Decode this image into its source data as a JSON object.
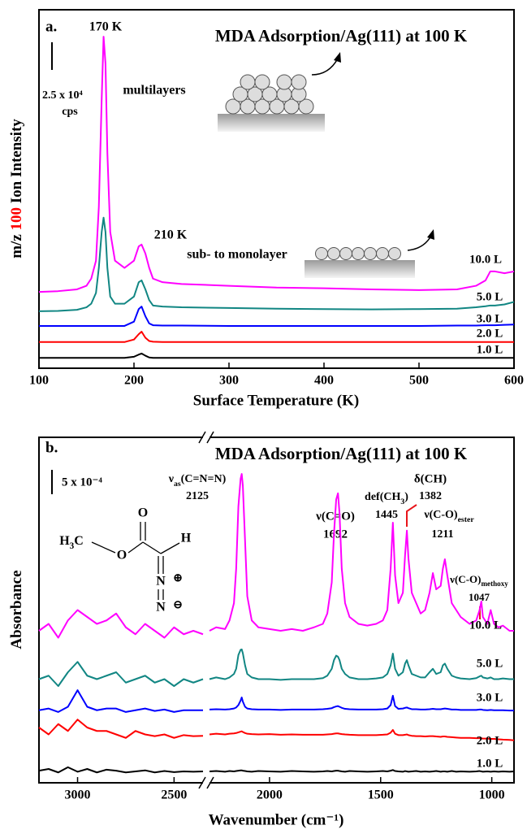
{
  "chart_data": [
    {
      "type": "line",
      "title": "MDA Adsorption/Ag(111) at 100 K",
      "x_label": "Surface Temperature (K)",
      "y_label": {
        "parts": [
          {
            "text": "m/z "
          },
          {
            "text": "100",
            "color": "#ff0000"
          },
          {
            "text": " Ion Intensity"
          }
        ]
      },
      "annotations": [
        {
          "text": "a."
        },
        {
          "text": "170 K"
        },
        {
          "text": "2.5 x 10⁴"
        },
        {
          "text": "cps"
        },
        {
          "text": "multilayers"
        },
        {
          "text": "210 K"
        },
        {
          "text": "sub- to monolayer"
        }
      ],
      "xlim": [
        100,
        600
      ],
      "xticks": [
        100,
        200,
        300,
        400,
        500,
        600
      ],
      "ylim": [
        0,
        100
      ],
      "x": [
        100,
        120,
        140,
        150,
        155,
        160,
        163,
        166,
        168,
        170,
        172,
        175,
        180,
        190,
        200,
        205,
        208,
        212,
        216,
        220,
        230,
        250,
        300,
        350,
        400,
        450,
        500,
        540,
        560,
        570,
        575,
        580,
        590,
        600
      ],
      "series": [
        {
          "name": "10.0 L",
          "color": "#ff00ff",
          "values": [
            21.3,
            21.5,
            22,
            23,
            25,
            30,
            45,
            75,
            92.5,
            85,
            60,
            38,
            30,
            28,
            30,
            34,
            34.5,
            32,
            28,
            25,
            24,
            23.5,
            23,
            22.5,
            22.3,
            22,
            21.8,
            22,
            23,
            24.5,
            27,
            27,
            26.5,
            27
          ]
        },
        {
          "name": "5.0 L",
          "color": "#118683",
          "values": [
            15.9,
            16,
            16.3,
            17,
            18,
            21,
            28,
            38,
            42,
            38,
            28,
            20,
            18,
            18,
            20,
            24,
            24.5,
            22,
            19,
            17.5,
            17.2,
            17,
            16.8,
            16.6,
            16.5,
            16.4,
            16.5,
            16.6,
            17,
            17.3,
            17.5,
            17.5,
            17.8,
            18.5
          ]
        },
        {
          "name": "3.0 L",
          "color": "#0000ff",
          "values": [
            11.8,
            11.8,
            11.8,
            11.8,
            11.8,
            11.8,
            11.8,
            11.8,
            11.8,
            11.8,
            11.8,
            11.8,
            11.8,
            11.8,
            13,
            16.5,
            17.2,
            14.5,
            12.5,
            12,
            11.9,
            11.9,
            11.8,
            11.8,
            11.8,
            11.8,
            11.8,
            11.9,
            11.9,
            12,
            12,
            12,
            12.1,
            12.2
          ]
        },
        {
          "name": "2.0 L",
          "color": "#ff0000",
          "values": [
            7.3,
            7.3,
            7.3,
            7.3,
            7.3,
            7.3,
            7.3,
            7.3,
            7.3,
            7.3,
            7.3,
            7.3,
            7.3,
            7.3,
            8,
            9.5,
            10.2,
            8.5,
            7.6,
            7.4,
            7.3,
            7.3,
            7.3,
            7.3,
            7.3,
            7.3,
            7.3,
            7.3,
            7.3,
            7.3,
            7.3,
            7.3,
            7.3,
            7.3
          ]
        },
        {
          "name": "1.0 L",
          "color": "#000000",
          "values": [
            2.9,
            2.9,
            2.9,
            2.9,
            2.9,
            2.9,
            2.9,
            2.9,
            2.9,
            2.9,
            2.9,
            2.9,
            2.9,
            2.9,
            3.2,
            3.8,
            4.1,
            3.5,
            3.0,
            2.9,
            2.9,
            2.9,
            2.9,
            2.9,
            2.9,
            2.9,
            2.9,
            2.9,
            2.9,
            2.9,
            2.9,
            2.9,
            2.9,
            2.9
          ]
        }
      ]
    },
    {
      "type": "line",
      "title": "MDA Adsorption/Ag(111) at 100 K",
      "x_label": "Wavenumber (cm⁻¹)",
      "y_label": {
        "parts": [
          {
            "text": "Absorbance"
          }
        ]
      },
      "annotations": [
        {
          "text": "b."
        },
        {
          "text": "5 x 10⁻⁴"
        },
        {
          "parts": [
            {
              "text": "ν"
            },
            {
              "text": "as",
              "sub": true
            },
            {
              "text": "(C=N=N)"
            }
          ],
          "color": "#e8141a"
        },
        {
          "text": "2125",
          "color": "#e8141a"
        },
        {
          "text": "ν(C=O)",
          "color": "#e8141a"
        },
        {
          "text": "1692",
          "color": "#e8141a"
        },
        {
          "parts": [
            {
              "text": "def(CH"
            },
            {
              "text": "3",
              "sub": true
            },
            {
              "text": ")"
            }
          ],
          "color": "#e8141a"
        },
        {
          "text": "1445",
          "color": "#e8141a"
        },
        {
          "text": "δ(CH)",
          "color": "#e8141a"
        },
        {
          "text": "1382",
          "color": "#e8141a"
        },
        {
          "parts": [
            {
              "text": "ν(C-O)"
            },
            {
              "text": "ester",
              "sub": true
            }
          ],
          "color": "#e8141a"
        },
        {
          "text": "1211",
          "color": "#e8141a"
        },
        {
          "parts": [
            {
              "text": "ν(C-O)"
            },
            {
              "text": "methoxy",
              "sub": true
            }
          ],
          "color": "#e8141a"
        },
        {
          "text": "1047",
          "color": "#e8141a"
        },
        {
          "parts": [
            {
              "text": "H"
            },
            {
              "text": "3",
              "sub": true
            },
            {
              "text": "C"
            }
          ]
        },
        {
          "text": "O"
        },
        {
          "text": "O"
        },
        {
          "text": "H"
        },
        {
          "text": "N"
        },
        {
          "text": "N"
        },
        {
          "text": "⊕"
        },
        {
          "text": "⊖"
        }
      ],
      "xlim": [
        3200,
        900
      ],
      "xbreak": [
        2350,
        2270
      ],
      "xticks": [
        3000,
        2500,
        2000,
        1500,
        1000
      ],
      "ylim": [
        0,
        100
      ],
      "x": [
        3200,
        3150,
        3100,
        3050,
        3000,
        2950,
        2900,
        2850,
        2800,
        2750,
        2700,
        2650,
        2600,
        2550,
        2500,
        2450,
        2400,
        2350,
        2270,
        2240,
        2200,
        2180,
        2160,
        2150,
        2140,
        2130,
        2125,
        2120,
        2110,
        2100,
        2080,
        2050,
        2000,
        1950,
        1900,
        1850,
        1800,
        1760,
        1740,
        1720,
        1710,
        1700,
        1692,
        1685,
        1675,
        1660,
        1640,
        1600,
        1560,
        1520,
        1490,
        1470,
        1455,
        1445,
        1435,
        1420,
        1400,
        1390,
        1382,
        1375,
        1360,
        1340,
        1320,
        1300,
        1280,
        1265,
        1250,
        1230,
        1220,
        1211,
        1200,
        1180,
        1160,
        1140,
        1100,
        1070,
        1055,
        1047,
        1040,
        1020,
        1005,
        990,
        970,
        950,
        920,
        900
      ],
      "series": [
        {
          "name": "10.0 L",
          "color": "#ff00ff",
          "values": [
            44,
            46,
            42,
            47,
            50,
            48,
            46,
            47,
            49,
            45,
            43,
            46,
            44,
            42,
            45,
            43,
            44,
            43,
            44,
            45,
            44.5,
            47,
            52,
            62,
            80,
            88,
            89.4,
            86,
            70,
            54,
            47,
            45,
            44.5,
            44,
            44.5,
            44,
            45,
            46,
            49,
            58,
            72,
            82,
            83.8,
            78,
            62,
            52,
            48,
            46,
            45.5,
            46,
            47,
            50,
            62,
            75.3,
            60,
            52,
            55,
            66,
            73,
            65,
            55,
            52,
            49,
            50,
            55,
            60.7,
            56,
            57,
            62,
            64.7,
            60,
            52,
            50,
            48,
            46,
            47,
            50,
            52.5,
            48,
            46,
            50,
            46,
            45,
            45.5,
            44,
            44
          ]
        },
        {
          "name": "5.0 L",
          "color": "#118683",
          "values": [
            30,
            31,
            28,
            32,
            35,
            31,
            30,
            31,
            32,
            29,
            30,
            31,
            29,
            30,
            28,
            30,
            29,
            30,
            30,
            30.5,
            30,
            30.5,
            31.5,
            33,
            37,
            38.5,
            38.6,
            37.5,
            34,
            31.5,
            30.5,
            30,
            30,
            29.8,
            30,
            30,
            30,
            30.3,
            31,
            33,
            35.5,
            36.8,
            36.5,
            35.5,
            33,
            31.5,
            30.5,
            30,
            30,
            30.2,
            30.5,
            31.5,
            34,
            37.4,
            33,
            31,
            32,
            34.5,
            35.5,
            34,
            31.5,
            31,
            30.5,
            30.5,
            32,
            33,
            31.5,
            32,
            34,
            34.5,
            33,
            31,
            30.5,
            30.2,
            30,
            30.3,
            30.8,
            31,
            30.5,
            30.2,
            30.5,
            30,
            30,
            30.2,
            30,
            30
          ]
        },
        {
          "name": "3.0 L",
          "color": "#0000ff",
          "values": [
            21,
            21.5,
            20.5,
            22,
            26.8,
            22,
            21,
            21.5,
            21.5,
            20.5,
            21,
            21.5,
            20.8,
            21.2,
            20.5,
            21,
            21,
            21,
            21.2,
            21.3,
            21.2,
            21.3,
            21.5,
            21.8,
            22.5,
            23.8,
            24.7,
            23.5,
            22,
            21.5,
            21.3,
            21.2,
            21.2,
            21.1,
            21.2,
            21.2,
            21.2,
            21.3,
            21.4,
            21.6,
            21.9,
            22.1,
            22.2,
            22,
            21.7,
            21.4,
            21.3,
            21.2,
            21.2,
            21.2,
            21.3,
            21.5,
            22.5,
            25.2,
            22.2,
            21.4,
            21.5,
            21.7,
            21.8,
            21.6,
            21.3,
            21.3,
            21.2,
            21.2,
            21.3,
            21.4,
            21.3,
            21.3,
            21.4,
            21.5,
            21.4,
            21.2,
            21.2,
            21.1,
            21.1,
            21.1,
            21.2,
            21.2,
            21.1,
            21,
            21.1,
            21,
            21,
            21,
            20.9,
            20.9
          ]
        },
        {
          "name": "2.0 L",
          "color": "#ff0000",
          "values": [
            16,
            14,
            17,
            15,
            18.3,
            16,
            15,
            15,
            14,
            13,
            15,
            14,
            13.5,
            14,
            13,
            13.8,
            13.5,
            13.6,
            14,
            14.2,
            14,
            14.2,
            14.3,
            14.4,
            14.6,
            14.8,
            14.9,
            14.7,
            14.4,
            14.2,
            14.1,
            14,
            14.1,
            13.9,
            14,
            13.9,
            13.9,
            13.9,
            14,
            14.1,
            14.2,
            14.3,
            14.3,
            14.2,
            14.1,
            14,
            13.9,
            13.8,
            13.8,
            13.8,
            13.9,
            14,
            14.5,
            15.3,
            14.2,
            13.8,
            13.8,
            13.9,
            14,
            13.8,
            13.6,
            13.5,
            13.5,
            13.4,
            13.5,
            13.5,
            13.4,
            13.3,
            13.4,
            13.4,
            13.3,
            13.2,
            13.1,
            13,
            13,
            12.9,
            12.9,
            12.9,
            12.8,
            12.8,
            12.7,
            12.7,
            12.6,
            12.5,
            12.4,
            12.3
          ]
        },
        {
          "name": "1.0 L",
          "color": "#000000",
          "values": [
            3.5,
            4,
            3,
            4.5,
            3.2,
            4,
            3,
            3.8,
            3.5,
            3,
            3.3,
            3.6,
            3,
            3.4,
            3.1,
            3.3,
            3.2,
            3.3,
            3.3,
            3.4,
            3.2,
            3.4,
            3.3,
            3.4,
            3.5,
            3.6,
            3.6,
            3.5,
            3.4,
            3.3,
            3.2,
            3.4,
            3.3,
            3.2,
            3.4,
            3.3,
            3.2,
            3.3,
            3.4,
            3.3,
            3.4,
            3.5,
            3.5,
            3.4,
            3.3,
            3.2,
            3.4,
            3.3,
            3.2,
            3.3,
            3.4,
            3.3,
            3.5,
            3.7,
            3.4,
            3.3,
            3.2,
            3.4,
            3.3,
            3.2,
            3.3,
            3.4,
            3.2,
            3.3,
            3.2,
            3.3,
            3.4,
            3.2,
            3.3,
            3.3,
            3.2,
            3.4,
            3.2,
            3.3,
            3.2,
            3.3,
            3.4,
            3.3,
            3.2,
            3.3,
            3.2,
            3.3,
            3.2,
            3.3,
            3.2,
            3.3
          ]
        }
      ]
    }
  ]
}
